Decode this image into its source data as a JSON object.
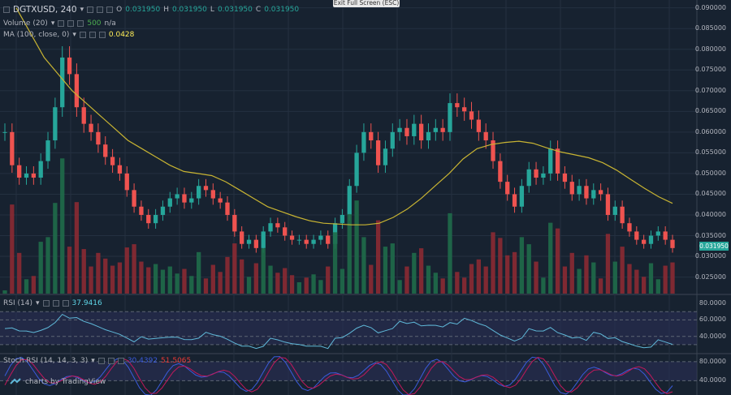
{
  "toolbar": {
    "exit_fullscreen": "Exit Full Screen (ESC)"
  },
  "main_legend": {
    "symbol": "DGTXUSD, 240",
    "open_label": "O",
    "open": "0.031950",
    "high_label": "H",
    "high": "0.031950",
    "low_label": "L",
    "low": "0.031950",
    "close_label": "C",
    "close": "0.031950"
  },
  "volume_legend": {
    "label": "Volume (20)",
    "value": "500",
    "value2": "n/a"
  },
  "ma_legend": {
    "label": "MA (100, close, 0)",
    "value": "0.0428"
  },
  "rsi_legend": {
    "label": "RSI (14)",
    "value": "37.9416"
  },
  "stoch_legend": {
    "label": "Stoch RSI (14, 14, 3, 3)",
    "k_value": "30.4392",
    "d_value": "51.5065"
  },
  "price_axis": {
    "labels": [
      "0.090000",
      "0.085000",
      "0.080000",
      "0.075000",
      "0.070000",
      "0.065000",
      "0.060000",
      "0.055000",
      "0.050000",
      "0.045000",
      "0.040000",
      "0.035000",
      "0.030000",
      "0.025000"
    ],
    "last_price": "0.031950"
  },
  "rsi_axis": {
    "labels": [
      "80.0000",
      "60.0000",
      "40.0000"
    ]
  },
  "stoch_axis": {
    "labels": [
      "80.0000",
      "40.0000"
    ]
  },
  "branding": {
    "text": "charts by TradingView"
  },
  "colors": {
    "up": "#26a69a",
    "down": "#ef5350",
    "ma": "#c8b432",
    "rsi": "#5fb8d8",
    "k": "#3b5bdb",
    "d": "#c2185b",
    "band": "#2a2f55",
    "bg": "#172230"
  },
  "chart_data": {
    "type": "candlestick",
    "symbol": "DGTXUSD",
    "timeframe": "240",
    "ylim": [
      0.021,
      0.0915
    ],
    "closes": [
      0.06,
      0.052,
      0.049,
      0.05,
      0.049,
      0.053,
      0.058,
      0.066,
      0.078,
      0.074,
      0.066,
      0.062,
      0.06,
      0.057,
      0.054,
      0.052,
      0.05,
      0.046,
      0.042,
      0.04,
      0.038,
      0.04,
      0.042,
      0.044,
      0.045,
      0.043,
      0.044,
      0.047,
      0.046,
      0.044,
      0.043,
      0.04,
      0.036,
      0.033,
      0.034,
      0.032,
      0.036,
      0.038,
      0.037,
      0.035,
      0.034,
      0.034,
      0.033,
      0.034,
      0.035,
      0.033,
      0.038,
      0.04,
      0.047,
      0.055,
      0.06,
      0.058,
      0.052,
      0.056,
      0.06,
      0.061,
      0.059,
      0.062,
      0.058,
      0.06,
      0.061,
      0.06,
      0.067,
      0.066,
      0.065,
      0.063,
      0.06,
      0.058,
      0.053,
      0.048,
      0.045,
      0.042,
      0.047,
      0.051,
      0.049,
      0.05,
      0.056,
      0.05,
      0.048,
      0.045,
      0.047,
      0.044,
      0.046,
      0.045,
      0.04,
      0.042,
      0.038,
      0.036,
      0.034,
      0.033,
      0.035,
      0.036,
      0.034,
      0.032
    ],
    "ma100": [
      0.09,
      0.084,
      0.078,
      0.074,
      0.07,
      0.067,
      0.064,
      0.061,
      0.058,
      0.056,
      0.054,
      0.052,
      0.0505,
      0.05,
      0.0495,
      0.048,
      0.046,
      0.044,
      0.042,
      0.0408,
      0.0396,
      0.0386,
      0.038,
      0.0378,
      0.0376,
      0.0376,
      0.038,
      0.0394,
      0.0414,
      0.044,
      0.047,
      0.05,
      0.0535,
      0.056,
      0.057,
      0.0575,
      0.0578,
      0.0573,
      0.0562,
      0.0552,
      0.0545,
      0.0538,
      0.0526,
      0.0508,
      0.0486,
      0.0464,
      0.0444,
      0.0428
    ],
    "rsi_levels": [
      70,
      60,
      40,
      30
    ],
    "rsi_last": 37.9416,
    "stoch_levels": [
      80,
      40
    ]
  }
}
